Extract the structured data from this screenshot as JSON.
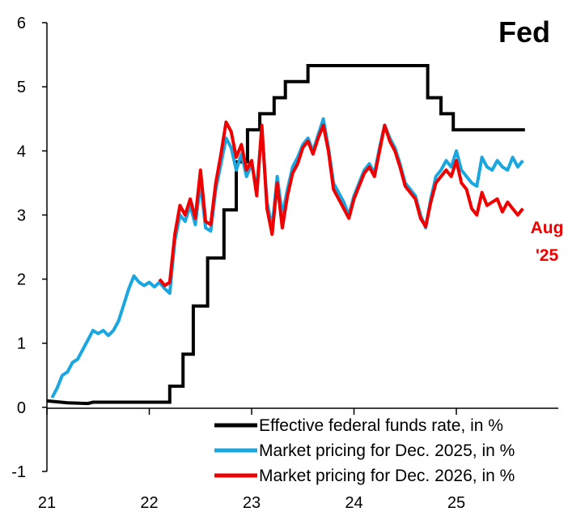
{
  "chart_data": {
    "type": "line",
    "title": "Fed",
    "xlabel": "",
    "ylabel": "",
    "xlim": [
      2021.0,
      2026.0
    ],
    "ylim": [
      -1,
      6
    ],
    "yticks": [
      -1,
      0,
      1,
      2,
      3,
      4,
      5,
      6
    ],
    "xticks": [
      {
        "value": 2021.0,
        "label": "21"
      },
      {
        "value": 2022.0,
        "label": "22"
      },
      {
        "value": 2023.0,
        "label": "23"
      },
      {
        "value": 2024.0,
        "label": "24"
      },
      {
        "value": 2025.0,
        "label": "25"
      }
    ],
    "grid": false,
    "legend_position": "bottom-right",
    "annotation": {
      "lines": [
        "Aug",
        "'25"
      ],
      "color": "#ee0000"
    },
    "series": [
      {
        "name": "Effective federal funds rate, in %",
        "color": "#000000",
        "step": true,
        "points": [
          [
            2021.0,
            0.1
          ],
          [
            2021.2,
            0.07
          ],
          [
            2021.4,
            0.06
          ],
          [
            2021.45,
            0.08
          ],
          [
            2021.6,
            0.08
          ],
          [
            2021.8,
            0.08
          ],
          [
            2022.0,
            0.08
          ],
          [
            2022.2,
            0.08
          ],
          [
            2022.2,
            0.33
          ],
          [
            2022.33,
            0.33
          ],
          [
            2022.33,
            0.83
          ],
          [
            2022.43,
            0.83
          ],
          [
            2022.43,
            1.58
          ],
          [
            2022.57,
            1.58
          ],
          [
            2022.57,
            2.33
          ],
          [
            2022.73,
            2.33
          ],
          [
            2022.73,
            3.08
          ],
          [
            2022.85,
            3.08
          ],
          [
            2022.85,
            3.83
          ],
          [
            2022.96,
            3.83
          ],
          [
            2022.96,
            4.33
          ],
          [
            2023.08,
            4.33
          ],
          [
            2023.08,
            4.58
          ],
          [
            2023.22,
            4.58
          ],
          [
            2023.22,
            4.83
          ],
          [
            2023.33,
            4.83
          ],
          [
            2023.33,
            5.08
          ],
          [
            2023.55,
            5.08
          ],
          [
            2023.55,
            5.33
          ],
          [
            2024.72,
            5.33
          ],
          [
            2024.72,
            4.83
          ],
          [
            2024.85,
            4.83
          ],
          [
            2024.85,
            4.58
          ],
          [
            2024.97,
            4.58
          ],
          [
            2024.97,
            4.33
          ],
          [
            2025.67,
            4.33
          ]
        ]
      },
      {
        "name": "Market pricing for Dec. 2025, in %",
        "color": "#1aa7e0",
        "step": false,
        "points": [
          [
            2021.05,
            0.15
          ],
          [
            2021.1,
            0.3
          ],
          [
            2021.15,
            0.5
          ],
          [
            2021.2,
            0.55
          ],
          [
            2021.25,
            0.7
          ],
          [
            2021.3,
            0.75
          ],
          [
            2021.35,
            0.9
          ],
          [
            2021.4,
            1.05
          ],
          [
            2021.45,
            1.2
          ],
          [
            2021.5,
            1.15
          ],
          [
            2021.55,
            1.2
          ],
          [
            2021.6,
            1.12
          ],
          [
            2021.65,
            1.2
          ],
          [
            2021.7,
            1.35
          ],
          [
            2021.75,
            1.6
          ],
          [
            2021.8,
            1.85
          ],
          [
            2021.85,
            2.05
          ],
          [
            2021.9,
            1.95
          ],
          [
            2021.95,
            1.9
          ],
          [
            2022.0,
            1.95
          ],
          [
            2022.05,
            1.88
          ],
          [
            2022.1,
            1.95
          ],
          [
            2022.15,
            1.85
          ],
          [
            2022.2,
            1.78
          ],
          [
            2022.25,
            2.6
          ],
          [
            2022.3,
            3.0
          ],
          [
            2022.35,
            2.9
          ],
          [
            2022.4,
            3.15
          ],
          [
            2022.45,
            2.85
          ],
          [
            2022.5,
            3.5
          ],
          [
            2022.55,
            2.8
          ],
          [
            2022.6,
            2.75
          ],
          [
            2022.65,
            3.4
          ],
          [
            2022.7,
            3.8
          ],
          [
            2022.75,
            4.2
          ],
          [
            2022.8,
            4.05
          ],
          [
            2022.85,
            3.7
          ],
          [
            2022.9,
            3.95
          ],
          [
            2022.95,
            3.6
          ],
          [
            2023.0,
            3.8
          ],
          [
            2023.05,
            3.4
          ],
          [
            2023.1,
            4.35
          ],
          [
            2023.15,
            3.2
          ],
          [
            2023.2,
            2.8
          ],
          [
            2023.25,
            3.6
          ],
          [
            2023.3,
            3.0
          ],
          [
            2023.35,
            3.4
          ],
          [
            2023.4,
            3.75
          ],
          [
            2023.45,
            3.9
          ],
          [
            2023.5,
            4.1
          ],
          [
            2023.55,
            4.2
          ],
          [
            2023.6,
            4.0
          ],
          [
            2023.65,
            4.25
          ],
          [
            2023.7,
            4.5
          ],
          [
            2023.75,
            4.05
          ],
          [
            2023.8,
            3.5
          ],
          [
            2023.85,
            3.35
          ],
          [
            2023.9,
            3.2
          ],
          [
            2023.95,
            3.0
          ],
          [
            2024.0,
            3.3
          ],
          [
            2024.05,
            3.5
          ],
          [
            2024.1,
            3.7
          ],
          [
            2024.15,
            3.8
          ],
          [
            2024.2,
            3.65
          ],
          [
            2024.25,
            4.05
          ],
          [
            2024.3,
            4.4
          ],
          [
            2024.35,
            4.2
          ],
          [
            2024.4,
            4.05
          ],
          [
            2024.45,
            3.8
          ],
          [
            2024.5,
            3.5
          ],
          [
            2024.55,
            3.4
          ],
          [
            2024.6,
            3.3
          ],
          [
            2024.65,
            3.0
          ],
          [
            2024.7,
            2.8
          ],
          [
            2024.75,
            3.25
          ],
          [
            2024.8,
            3.6
          ],
          [
            2024.85,
            3.7
          ],
          [
            2024.9,
            3.85
          ],
          [
            2024.95,
            3.75
          ],
          [
            2025.0,
            4.0
          ],
          [
            2025.05,
            3.7
          ],
          [
            2025.1,
            3.6
          ],
          [
            2025.15,
            3.5
          ],
          [
            2025.2,
            3.45
          ],
          [
            2025.25,
            3.9
          ],
          [
            2025.3,
            3.75
          ],
          [
            2025.35,
            3.7
          ],
          [
            2025.4,
            3.85
          ],
          [
            2025.45,
            3.75
          ],
          [
            2025.5,
            3.7
          ],
          [
            2025.55,
            3.9
          ],
          [
            2025.6,
            3.75
          ],
          [
            2025.65,
            3.85
          ]
        ]
      },
      {
        "name": "Market pricing for Dec. 2026, in %",
        "color": "#ee0000",
        "step": false,
        "points": [
          [
            2022.1,
            2.0
          ],
          [
            2022.15,
            1.9
          ],
          [
            2022.2,
            1.95
          ],
          [
            2022.25,
            2.7
          ],
          [
            2022.3,
            3.15
          ],
          [
            2022.35,
            3.0
          ],
          [
            2022.4,
            3.25
          ],
          [
            2022.45,
            2.95
          ],
          [
            2022.5,
            3.7
          ],
          [
            2022.55,
            2.9
          ],
          [
            2022.6,
            2.85
          ],
          [
            2022.65,
            3.5
          ],
          [
            2022.7,
            3.95
          ],
          [
            2022.75,
            4.45
          ],
          [
            2022.8,
            4.3
          ],
          [
            2022.85,
            3.9
          ],
          [
            2022.9,
            4.1
          ],
          [
            2022.95,
            3.7
          ],
          [
            2023.0,
            3.85
          ],
          [
            2023.05,
            3.3
          ],
          [
            2023.1,
            4.4
          ],
          [
            2023.15,
            3.1
          ],
          [
            2023.2,
            2.7
          ],
          [
            2023.25,
            3.5
          ],
          [
            2023.3,
            2.8
          ],
          [
            2023.35,
            3.3
          ],
          [
            2023.4,
            3.65
          ],
          [
            2023.45,
            3.8
          ],
          [
            2023.5,
            4.05
          ],
          [
            2023.55,
            4.15
          ],
          [
            2023.6,
            3.95
          ],
          [
            2023.65,
            4.2
          ],
          [
            2023.7,
            4.4
          ],
          [
            2023.75,
            4.0
          ],
          [
            2023.8,
            3.4
          ],
          [
            2023.85,
            3.25
          ],
          [
            2023.9,
            3.1
          ],
          [
            2023.95,
            2.95
          ],
          [
            2024.0,
            3.25
          ],
          [
            2024.05,
            3.45
          ],
          [
            2024.1,
            3.65
          ],
          [
            2024.15,
            3.75
          ],
          [
            2024.2,
            3.6
          ],
          [
            2024.25,
            4.0
          ],
          [
            2024.3,
            4.4
          ],
          [
            2024.35,
            4.15
          ],
          [
            2024.4,
            4.0
          ],
          [
            2024.45,
            3.75
          ],
          [
            2024.5,
            3.45
          ],
          [
            2024.55,
            3.35
          ],
          [
            2024.6,
            3.25
          ],
          [
            2024.65,
            2.95
          ],
          [
            2024.7,
            2.82
          ],
          [
            2024.75,
            3.2
          ],
          [
            2024.8,
            3.5
          ],
          [
            2024.85,
            3.6
          ],
          [
            2024.9,
            3.7
          ],
          [
            2024.95,
            3.6
          ],
          [
            2025.0,
            3.85
          ],
          [
            2025.05,
            3.5
          ],
          [
            2025.1,
            3.4
          ],
          [
            2025.15,
            3.1
          ],
          [
            2025.2,
            3.0
          ],
          [
            2025.25,
            3.35
          ],
          [
            2025.3,
            3.15
          ],
          [
            2025.35,
            3.2
          ],
          [
            2025.4,
            3.25
          ],
          [
            2025.45,
            3.05
          ],
          [
            2025.5,
            3.2
          ],
          [
            2025.55,
            3.1
          ],
          [
            2025.6,
            3.0
          ],
          [
            2025.65,
            3.1
          ]
        ]
      }
    ]
  }
}
